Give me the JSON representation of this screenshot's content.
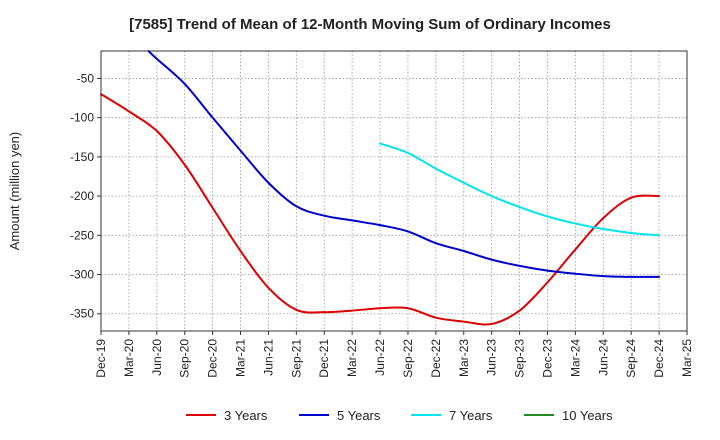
{
  "chart_data": {
    "type": "line",
    "title": "[7585]  Trend of Mean of 12-Month Moving Sum of Ordinary Incomes",
    "xlabel": "",
    "ylabel": "Amount (million yen)",
    "ylim": [
      -372,
      -15
    ],
    "y_ticks": [
      -50,
      -100,
      -150,
      -200,
      -250,
      -300,
      -350
    ],
    "x_ticks": [
      "Dec-19",
      "Mar-20",
      "Jun-20",
      "Sep-20",
      "Dec-20",
      "Mar-21",
      "Jun-21",
      "Sep-21",
      "Dec-21",
      "Mar-22",
      "Jun-22",
      "Sep-22",
      "Dec-22",
      "Mar-23",
      "Jun-23",
      "Sep-23",
      "Dec-23",
      "Mar-24",
      "Jun-24",
      "Sep-24",
      "Dec-24",
      "Mar-25"
    ],
    "x_index_note": "x is quarter index from Dec-19 (0) to Mar-25 (21)",
    "grid": true,
    "legend_position": "bottom",
    "series": [
      {
        "name": "3 Years",
        "color": "#dd0000",
        "x": [
          0,
          1,
          2,
          3,
          4,
          5,
          6,
          7,
          8,
          9,
          10,
          11,
          12,
          13,
          14,
          15,
          16,
          17,
          18,
          19,
          20
        ],
        "y": [
          -70,
          -92,
          -117,
          -160,
          -215,
          -270,
          -317,
          -345,
          -348,
          -346,
          -343,
          -343,
          -355,
          -360,
          -363,
          -346,
          -310,
          -268,
          -228,
          -202,
          -200
        ]
      },
      {
        "name": "5 Years",
        "color": "#0000cc",
        "x": [
          1.7,
          2,
          3,
          4,
          5,
          6,
          7,
          8,
          9,
          10,
          11,
          12,
          13,
          14,
          15,
          16,
          17,
          18,
          19,
          20
        ],
        "y": [
          -15,
          -25,
          -57,
          -100,
          -142,
          -183,
          -213,
          -225,
          -231,
          -237,
          -245,
          -260,
          -270,
          -281,
          -289,
          -295,
          -299,
          -302,
          -303,
          -303
        ]
      },
      {
        "name": "7 Years",
        "color": "#00e5ee",
        "x": [
          10,
          11,
          12,
          13,
          14,
          15,
          16,
          17,
          18,
          19,
          20
        ],
        "y": [
          -133,
          -145,
          -165,
          -183,
          -200,
          -214,
          -226,
          -235,
          -242,
          -247,
          -250
        ]
      },
      {
        "name": "10 Years",
        "color": "#228B22",
        "x": [],
        "y": []
      }
    ]
  }
}
